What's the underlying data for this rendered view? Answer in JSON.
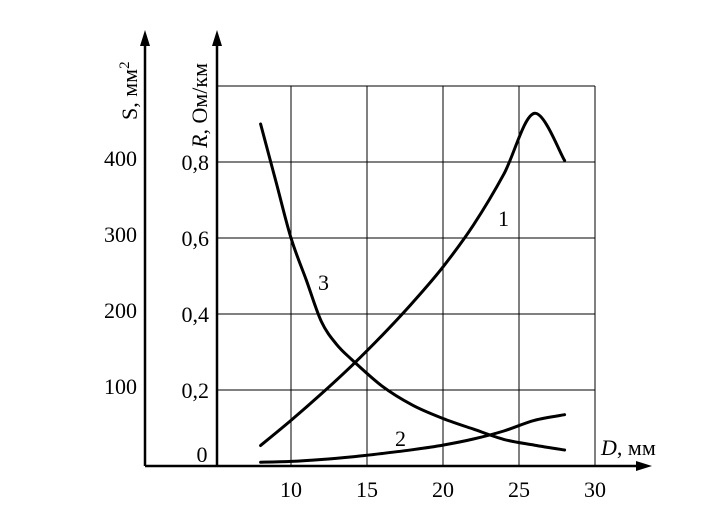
{
  "chart_data": {
    "type": "line",
    "x_axis": {
      "label_var": "D",
      "label_unit": ", мм",
      "ticks": [
        "10",
        "15",
        "20",
        "25",
        "30"
      ],
      "tick_values": [
        10,
        15,
        20,
        25,
        30
      ],
      "range": [
        5,
        30
      ]
    },
    "y_axis_left": {
      "label": "S, мм",
      "label_sup": "2",
      "ticks": [
        "100",
        "200",
        "300",
        "400"
      ],
      "tick_values": [
        100,
        200,
        300,
        400
      ],
      "range": [
        0,
        500
      ]
    },
    "y_axis_right": {
      "label_var": "R",
      "label_unit": ", Ом/км",
      "ticks": [
        "0",
        "0,2",
        "0,4",
        "0,6",
        "0,8"
      ],
      "tick_values": [
        0,
        0.2,
        0.4,
        0.6,
        0.8
      ],
      "range": [
        0,
        1.0
      ]
    },
    "grid": true,
    "series": [
      {
        "name": "1",
        "axis": "left",
        "x": [
          8,
          10,
          12,
          14,
          16,
          18,
          20,
          22,
          24,
          26,
          28
        ],
        "y": [
          27,
          60,
          95,
          132,
          172,
          215,
          262,
          317,
          384,
          464,
          402
        ]
      },
      {
        "name": "2",
        "axis": "right",
        "x": [
          8,
          10,
          12,
          14,
          16,
          18,
          20,
          22,
          24,
          26,
          28
        ],
        "y": [
          0.01,
          0.012,
          0.017,
          0.024,
          0.033,
          0.043,
          0.055,
          0.071,
          0.092,
          0.12,
          0.135
        ]
      },
      {
        "name": "3",
        "axis": "right",
        "x": [
          8,
          9,
          10,
          11,
          12,
          13,
          14,
          16,
          18,
          20,
          22,
          24,
          26,
          28
        ],
        "y": [
          0.9,
          0.75,
          0.6,
          0.49,
          0.38,
          0.32,
          0.28,
          0.21,
          0.16,
          0.125,
          0.097,
          0.07,
          0.055,
          0.042
        ]
      }
    ]
  }
}
